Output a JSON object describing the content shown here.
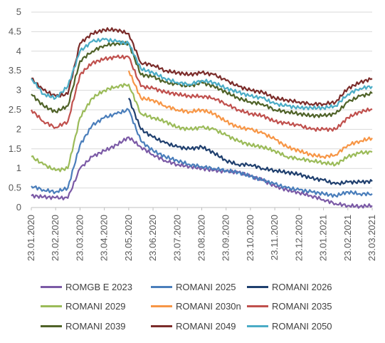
{
  "chart_data": {
    "type": "line",
    "title": "",
    "xlabel": "",
    "ylabel": "",
    "ylim": [
      0,
      5
    ],
    "yticks": [
      "0",
      "0.5",
      "1",
      "1.5",
      "2",
      "2.5",
      "3",
      "3.5",
      "4",
      "4.5",
      "5"
    ],
    "xticks": [
      "23.01.2020",
      "23.02.2020",
      "23.03.2020",
      "23.04.2020",
      "23.05.2020",
      "23.06.2020",
      "23.07.2020",
      "23.08.2020",
      "23.09.2020",
      "23.10.2020",
      "23.11.2020",
      "23.12.2020",
      "23.01.2021",
      "23.02.2021",
      "23.03.2021"
    ],
    "x": [
      "23.01.2020",
      "06.02.2020",
      "23.02.2020",
      "09.03.2020",
      "23.03.2020",
      "08.04.2020",
      "23.04.2020",
      "08.05.2020",
      "23.05.2020",
      "08.06.2020",
      "23.06.2020",
      "08.07.2020",
      "23.07.2020",
      "08.08.2020",
      "23.08.2020",
      "08.09.2020",
      "23.09.2020",
      "08.10.2020",
      "23.10.2020",
      "08.11.2020",
      "23.11.2020",
      "08.12.2020",
      "23.12.2020",
      "08.01.2021",
      "23.01.2021",
      "08.02.2021",
      "23.02.2021",
      "08.03.2021",
      "23.03.2021"
    ],
    "grid": true,
    "legend_position": "bottom",
    "series": [
      {
        "name": "ROMGB E 2023",
        "color": "#7b5aa6",
        "values": [
          0.3,
          0.27,
          0.25,
          0.24,
          1.0,
          1.3,
          1.45,
          1.6,
          1.8,
          1.55,
          1.35,
          1.2,
          1.1,
          1.05,
          1.0,
          0.95,
          0.92,
          0.9,
          0.8,
          0.7,
          0.55,
          0.45,
          0.38,
          0.3,
          0.2,
          0.1,
          0.05,
          0.03,
          0.05
        ]
      },
      {
        "name": "ROMANI 2025",
        "color": "#4a7ebb",
        "values": [
          0.55,
          0.45,
          0.4,
          0.5,
          1.6,
          2.1,
          2.3,
          2.4,
          2.5,
          1.7,
          1.45,
          1.3,
          1.2,
          1.1,
          1.05,
          1.0,
          0.95,
          0.9,
          0.8,
          0.7,
          0.6,
          0.5,
          0.45,
          0.4,
          0.35,
          0.3,
          0.4,
          0.35,
          0.35
        ]
      },
      {
        "name": "ROMANI 2026",
        "color": "#1f3f6e",
        "values": [
          null,
          null,
          null,
          null,
          null,
          null,
          null,
          null,
          2.8,
          2.0,
          1.8,
          1.65,
          1.55,
          1.5,
          1.55,
          1.4,
          1.2,
          1.1,
          1.1,
          1.0,
          0.95,
          0.9,
          0.85,
          0.75,
          0.7,
          0.6,
          0.65,
          0.65,
          0.67
        ]
      },
      {
        "name": "ROMANI 2029",
        "color": "#9bbb59",
        "values": [
          1.3,
          1.1,
          0.95,
          1.0,
          2.3,
          2.8,
          3.0,
          3.1,
          3.15,
          2.4,
          2.3,
          2.2,
          2.05,
          2.0,
          2.05,
          2.0,
          1.85,
          1.7,
          1.6,
          1.55,
          1.45,
          1.3,
          1.25,
          1.2,
          1.15,
          1.1,
          1.3,
          1.4,
          1.42
        ]
      },
      {
        "name": "ROMANI 2030n",
        "color": "#f79646",
        "values": [
          null,
          null,
          null,
          null,
          null,
          null,
          null,
          null,
          3.5,
          2.8,
          2.75,
          2.6,
          2.5,
          2.45,
          2.5,
          2.4,
          2.2,
          2.05,
          2.0,
          1.9,
          1.75,
          1.55,
          1.45,
          1.35,
          1.3,
          1.35,
          1.6,
          1.7,
          1.78
        ]
      },
      {
        "name": "ROMANI 2035",
        "color": "#c0504d",
        "values": [
          2.5,
          2.2,
          2.05,
          2.2,
          3.4,
          3.7,
          3.8,
          3.85,
          3.85,
          3.1,
          3.05,
          2.95,
          2.9,
          2.85,
          2.85,
          2.8,
          2.65,
          2.5,
          2.4,
          2.35,
          2.2,
          2.15,
          2.1,
          2.0,
          2.0,
          2.0,
          2.3,
          2.45,
          2.52
        ]
      },
      {
        "name": "ROMANI 2039",
        "color": "#4f6228",
        "values": [
          2.9,
          2.6,
          2.45,
          2.6,
          3.75,
          4.0,
          4.15,
          4.2,
          4.2,
          3.4,
          3.35,
          3.2,
          3.15,
          3.1,
          3.2,
          3.1,
          2.95,
          2.8,
          2.7,
          2.65,
          2.5,
          2.45,
          2.4,
          2.35,
          2.35,
          2.4,
          2.7,
          2.85,
          2.92
        ]
      },
      {
        "name": "ROMANI 2049",
        "color": "#7b2c2a",
        "values": [
          3.3,
          3.0,
          2.85,
          2.9,
          4.2,
          4.45,
          4.55,
          4.55,
          4.45,
          3.7,
          3.65,
          3.5,
          3.45,
          3.4,
          3.45,
          3.4,
          3.25,
          3.1,
          3.0,
          2.95,
          2.8,
          2.75,
          2.7,
          2.65,
          2.65,
          2.7,
          3.05,
          3.2,
          3.3
        ]
      },
      {
        "name": "ROMANI 2050",
        "color": "#4bacc6",
        "values": [
          3.3,
          2.9,
          2.8,
          3.1,
          4.0,
          4.25,
          4.3,
          4.25,
          4.2,
          3.55,
          3.45,
          3.3,
          3.2,
          3.15,
          3.25,
          3.2,
          3.05,
          2.95,
          2.85,
          2.8,
          2.65,
          2.6,
          2.55,
          2.55,
          2.55,
          2.6,
          2.9,
          3.05,
          3.1
        ]
      }
    ]
  }
}
